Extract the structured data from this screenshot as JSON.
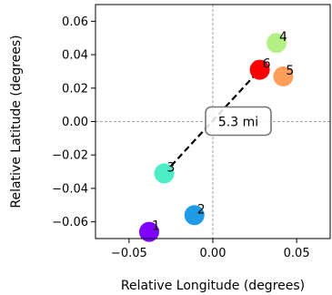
{
  "chart_data": {
    "type": "scatter",
    "xlabel": "Relative Longitude (degrees)",
    "ylabel": "Relative Latitude (degrees)",
    "xlim": [
      -0.07,
      0.07
    ],
    "ylim": [
      -0.07,
      0.07
    ],
    "x_ticks": [
      -0.05,
      0.0,
      0.05
    ],
    "x_tick_labels": [
      "−0.05",
      "0.00",
      "0.05"
    ],
    "y_ticks": [
      -0.06,
      -0.04,
      -0.02,
      0.0,
      0.02,
      0.04,
      0.06
    ],
    "y_tick_labels": [
      "−0.06",
      "−0.04",
      "−0.02",
      "0.00",
      "0.02",
      "0.04",
      "0.06"
    ],
    "reference_lines": {
      "x": 0.0,
      "y": 0.0,
      "style": "dashed",
      "color": "#888888"
    },
    "points": [
      {
        "label": "1",
        "x": -0.038,
        "y": -0.066,
        "color": "#7f00ff"
      },
      {
        "label": "2",
        "x": -0.011,
        "y": -0.056,
        "color": "#1f9be6"
      },
      {
        "label": "3",
        "x": -0.029,
        "y": -0.031,
        "color": "#4deec5"
      },
      {
        "label": "4",
        "x": 0.038,
        "y": 0.047,
        "color": "#b5f086"
      },
      {
        "label": "5",
        "x": 0.042,
        "y": 0.027,
        "color": "#ff9e5a"
      },
      {
        "label": "6",
        "x": 0.028,
        "y": 0.031,
        "color": "#ff0000"
      }
    ],
    "connection": {
      "from": "3",
      "to": "6",
      "style": "dashed",
      "color": "#000000"
    },
    "annotation": {
      "text": "5.3 mi",
      "x": 0.0,
      "y": 0.0
    }
  }
}
